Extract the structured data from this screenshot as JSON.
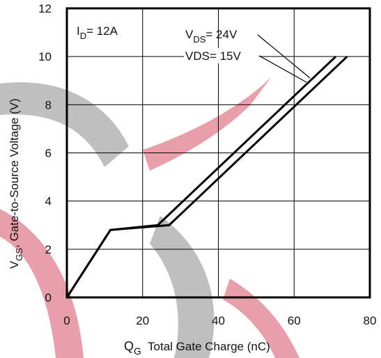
{
  "watermark": {
    "colors": {
      "gray": "#bcbcbc",
      "pink": "#e89aa6"
    }
  },
  "chart_data": {
    "type": "line",
    "xlim": [
      0,
      80
    ],
    "ylim": [
      0,
      12
    ],
    "xticks": [
      0,
      20,
      40,
      60,
      80
    ],
    "yticks": [
      0,
      2,
      4,
      6,
      8,
      10,
      12
    ],
    "grid": true,
    "xlabel": {
      "main": "Q",
      "sub": "G",
      "rest": "  Total Gate Charge (nC)"
    },
    "ylabel": {
      "main": "V",
      "sub": "GS",
      "rest": ", Gate-to-Source Voltage (V)"
    },
    "condition": {
      "main": "I",
      "sub": "D",
      "rest": "= 12A"
    },
    "series": [
      {
        "name": "VDS= 24V",
        "label_parts": {
          "main": "V",
          "sub": "DS",
          "rest": "= 24V"
        },
        "points": [
          [
            0,
            0
          ],
          [
            11.5,
            2.8
          ],
          [
            24,
            3.0
          ],
          [
            71,
            10.0
          ]
        ]
      },
      {
        "name": "VDS= 15V",
        "label_parts": {
          "main": "VDS= 15V",
          "sub": "",
          "rest": ""
        },
        "points": [
          [
            0,
            0
          ],
          [
            11.5,
            2.8
          ],
          [
            27,
            3.0
          ],
          [
            74,
            10.0
          ]
        ]
      }
    ]
  }
}
